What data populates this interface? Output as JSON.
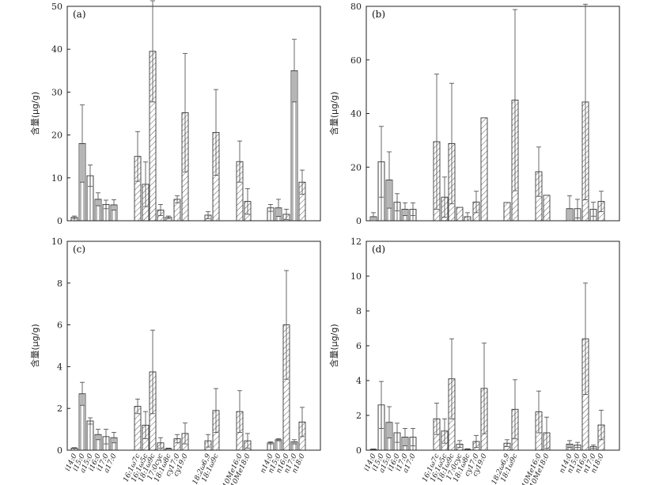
{
  "categories": [
    "i14:0",
    "i15:0",
    "a15:0",
    "i16:0",
    "i17:0",
    "a17:0",
    "16:1ω7c",
    "16:1ω5c",
    "18:1ω9c",
    "17:0cyc",
    "18:1ω8c",
    "cy17:0",
    "cy19:0",
    "18:2ω6,9",
    "18:1ω9c",
    "10Me16:0",
    "10Me18:0",
    "n14:0",
    "n15:0",
    "n16:0",
    "n17:0",
    "n18:0"
  ],
  "hatch": [
    "v",
    "v",
    "v",
    "v",
    "v",
    "v",
    "d",
    "d",
    "d",
    "d",
    "d",
    "d",
    "d",
    "d",
    "d",
    "d",
    "d",
    "v",
    "v",
    "d",
    "v",
    "d"
  ],
  "chart_data": [
    {
      "type": "bar",
      "panel_label": "(a)",
      "ylabel": "含量(μg/g)",
      "ylim": [
        0,
        50
      ],
      "yticks": [
        0,
        10,
        20,
        30,
        40,
        50
      ],
      "values": [
        0.8,
        18.0,
        10.5,
        5.0,
        3.8,
        3.7,
        15.0,
        8.5,
        39.5,
        2.5,
        0.8,
        5.0,
        25.2,
        1.3,
        20.6,
        13.8,
        4.5,
        3.0,
        3.0,
        1.5,
        35.0,
        9.0
      ],
      "errors": [
        0.3,
        9.0,
        2.5,
        1.5,
        1.0,
        1.2,
        5.8,
        5.2,
        11.8,
        1.3,
        0.3,
        0.8,
        13.8,
        0.8,
        10.0,
        4.8,
        3.0,
        0.8,
        2.0,
        1.2,
        7.3,
        2.8
      ]
    },
    {
      "type": "bar",
      "panel_label": "(b)",
      "ylabel": "含量(μg/g)",
      "ylim": [
        0,
        80
      ],
      "yticks": [
        0,
        20,
        40,
        60,
        80
      ],
      "values": [
        1.5,
        22.0,
        15.2,
        6.9,
        4.3,
        4.3,
        29.5,
        8.8,
        28.8,
        5.0,
        1.5,
        7.0,
        38.4,
        6.8,
        45.0,
        18.3,
        9.5,
        4.5,
        4.5,
        44.3,
        4.3,
        7.2
      ],
      "errors": [
        1.5,
        13.2,
        10.5,
        3.2,
        2.4,
        2.4,
        25.2,
        7.5,
        22.5,
        0.0,
        1.5,
        4.0,
        0.0,
        0.0,
        33.8,
        9.2,
        0.0,
        4.8,
        3.5,
        36.5,
        2.6,
        3.8
      ]
    },
    {
      "type": "bar",
      "panel_label": "(c)",
      "ylabel": "含量(μg/g)",
      "ylim": [
        0,
        10
      ],
      "yticks": [
        0,
        2,
        4,
        6,
        8,
        10
      ],
      "values": [
        0.1,
        2.7,
        1.4,
        0.75,
        0.65,
        0.6,
        2.1,
        1.2,
        3.75,
        0.35,
        0.08,
        0.55,
        0.8,
        0.45,
        1.9,
        1.85,
        0.45,
        0.35,
        0.5,
        6.0,
        0.4,
        1.35
      ],
      "errors": [
        0.02,
        0.55,
        0.15,
        0.25,
        0.35,
        0.25,
        0.35,
        0.65,
        2.0,
        0.25,
        0.02,
        0.2,
        0.5,
        0.3,
        1.05,
        1.0,
        0.35,
        0.05,
        0.05,
        2.6,
        0.1,
        0.7
      ]
    },
    {
      "type": "bar",
      "panel_label": "(d)",
      "ylabel": "含量(μg/g)",
      "ylim": [
        0,
        12
      ],
      "yticks": [
        0,
        2,
        4,
        6,
        8,
        10,
        12
      ],
      "values": [
        0.05,
        2.6,
        1.6,
        1.0,
        0.75,
        0.75,
        1.8,
        1.1,
        4.1,
        0.35,
        0.05,
        0.5,
        3.55,
        0.4,
        2.35,
        2.2,
        1.0,
        0.35,
        0.3,
        6.4,
        0.2,
        1.45
      ],
      "errors": [
        0.02,
        1.35,
        0.9,
        0.55,
        0.5,
        0.5,
        0.9,
        0.7,
        2.3,
        0.2,
        0.03,
        0.35,
        2.6,
        0.2,
        1.7,
        1.2,
        0.9,
        0.2,
        0.15,
        3.2,
        0.1,
        0.85
      ]
    }
  ]
}
